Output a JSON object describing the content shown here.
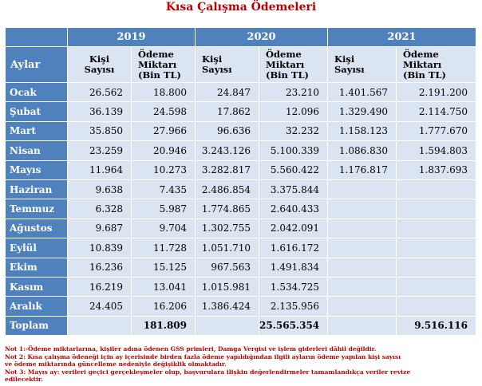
{
  "title": "Kısa Çalışma Ödemeleri",
  "header": {
    "row_label": "Aylar",
    "years": [
      "2019",
      "2020",
      "2021"
    ],
    "col_kisi": "Kişi\nSayısı",
    "col_odeme": "Ödeme\nMiktarı\n(Bin TL)"
  },
  "rows": [
    {
      "month": "Ocak",
      "k2019": "26.562",
      "o2019": "18.800",
      "k2020": "24.847",
      "o2020": "23.210",
      "k2021": "1.401.567",
      "o2021": "2.191.200"
    },
    {
      "month": "Şubat",
      "k2019": "36.139",
      "o2019": "24.598",
      "k2020": "17.862",
      "o2020": "12.096",
      "k2021": "1.329.490",
      "o2021": "2.114.750"
    },
    {
      "month": "Mart",
      "k2019": "35.850",
      "o2019": "27.966",
      "k2020": "96.636",
      "o2020": "32.232",
      "k2021": "1.158.123",
      "o2021": "1.777.670"
    },
    {
      "month": "Nisan",
      "k2019": "23.259",
      "o2019": "20.946",
      "k2020": "3.243.126",
      "o2020": "5.100.339",
      "k2021": "1.086.830",
      "o2021": "1.594.803"
    },
    {
      "month": "Mayıs",
      "k2019": "11.964",
      "o2019": "10.273",
      "k2020": "3.282.817",
      "o2020": "5.560.422",
      "k2021": "1.176.817",
      "o2021": "1.837.693"
    },
    {
      "month": "Haziran",
      "k2019": "9.638",
      "o2019": "7.435",
      "k2020": "2.486.854",
      "o2020": "3.375.844",
      "k2021": "",
      "o2021": ""
    },
    {
      "month": "Temmuz",
      "k2019": "6.328",
      "o2019": "5.987",
      "k2020": "1.774.865",
      "o2020": "2.640.433",
      "k2021": "",
      "o2021": ""
    },
    {
      "month": "Ağustos",
      "k2019": "9.687",
      "o2019": "9.704",
      "k2020": "1.302.755",
      "o2020": "2.042.091",
      "k2021": "",
      "o2021": ""
    },
    {
      "month": "Eylül",
      "k2019": "10.839",
      "o2019": "11.728",
      "k2020": "1.051.710",
      "o2020": "1.616.172",
      "k2021": "",
      "o2021": ""
    },
    {
      "month": "Ekim",
      "k2019": "16.236",
      "o2019": "15.125",
      "k2020": "967.563",
      "o2020": "1.491.834",
      "k2021": "",
      "o2021": ""
    },
    {
      "month": "Kasım",
      "k2019": "16.219",
      "o2019": "13.041",
      "k2020": "1.015.981",
      "o2020": "1.534.725",
      "k2021": "",
      "o2021": ""
    },
    {
      "month": "Aralık",
      "k2019": "24.405",
      "o2019": "16.206",
      "k2020": "1.386.424",
      "o2020": "2.135.956",
      "k2021": "",
      "o2021": ""
    }
  ],
  "total": {
    "label": "Toplam",
    "o2019": "181.809",
    "o2020": "25.565.354",
    "o2021": "9.516.116"
  },
  "notes": [
    "Not 1:-Ödeme miktarlarına, kişiler adına ödenen GSS primleri, Damga Vergisi ve işlem giderleri dâhil değildir.",
    "Not 2: Kısa çalışma ödeneği için ay içerisinde birden fazla ödeme yapıldığından ilgili ayların ödeme yapılan kişi sayısı",
    "ve ödeme miktarında güncelleme nedeniyle değişiklik olmaktadır.",
    "Not 3: Mayıs ay: verileri geçici gerçekleşmeler olup, başvurulara ilişkin değerlendirmeler tamamlandıkça veriler revize",
    "edilecektir."
  ]
}
